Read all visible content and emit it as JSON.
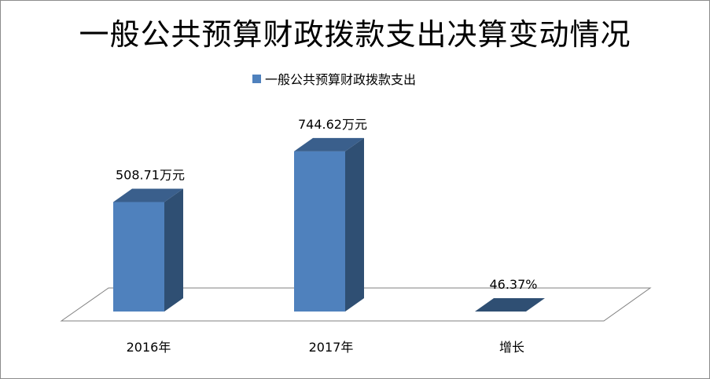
{
  "chart_data": {
    "type": "bar",
    "title": "一般公共预算财政拨款支出决算变动情况",
    "categories": [
      "2016年",
      "2017年",
      "增长"
    ],
    "series": [
      {
        "name": "一般公共预算财政拨款支出",
        "values": [
          508.71,
          744.62,
          46.37
        ]
      }
    ],
    "data_labels": [
      "508.71万元",
      "744.62万元",
      "46.37%"
    ],
    "units": [
      "万元",
      "万元",
      "%"
    ],
    "style": "3d-column",
    "legend_position": "top",
    "grid": false,
    "colors": {
      "front": "#4f81bd",
      "side": "#2f4f73",
      "top": "#3a5f8c",
      "floor": "#ffffff"
    }
  }
}
